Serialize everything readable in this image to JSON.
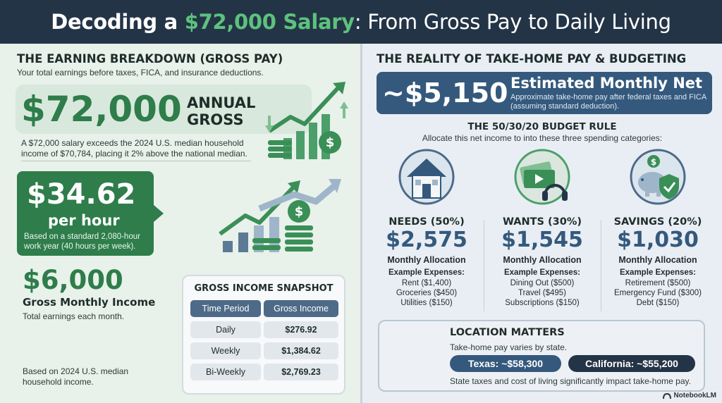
{
  "header": {
    "title_pre": "Decoding a ",
    "title_highlight": "$72,000 Salary",
    "title_mid": ": From Gross Pay to Daily Living"
  },
  "left": {
    "section_title": "THE EARNING BREAKDOWN (GROSS PAY)",
    "section_sub": "Your total earnings before taxes, FICA, and insurance deductions.",
    "annual_value": "$72,000",
    "annual_label_1": "ANNUAL",
    "annual_label_2": "GROSS",
    "annual_note": "A $72,000 salary exceeds the 2024 U.S. median household income of $70,784, placing it 2% above the national median.",
    "hourly_value": "$34.62",
    "hourly_label": "per hour",
    "hourly_note": "Based on a standard 2,080-hour work year (40 hours per week).",
    "monthly_value": "$6,000",
    "monthly_label": "Gross Monthly Income",
    "monthly_note": "Total earnings each month.",
    "footnote": "Based on 2024 U.S. median household income.",
    "snapshot": {
      "title": "GROSS INCOME SNAPSHOT",
      "col_period": "Time Period",
      "col_income": "Gross Income",
      "rows": [
        {
          "period": "Daily",
          "income": "$276.92"
        },
        {
          "period": "Weekly",
          "income": "$1,384.62"
        },
        {
          "period": "Bi-Weekly",
          "income": "$2,769.23"
        }
      ]
    }
  },
  "right": {
    "section_title": "THE REALITY OF TAKE-HOME PAY & BUDGETING",
    "net_value": "~$5,150",
    "net_title": "Estimated Monthly Net",
    "net_note": "Approximate take-home pay after federal taxes and FICA (assuming standard deduction).",
    "rule_title": "THE 50/30/20 BUDGET RULE",
    "rule_sub": "Allocate this net income to into these three spending categories:",
    "categories": [
      {
        "head": "NEEDS (50%)",
        "amount": "$2,575",
        "alloc": "Monthly Allocation",
        "ex_head": "Example Expenses:",
        "ex": [
          "Rent ($1,400)",
          "Groceries ($450)",
          "Utilities ($150)"
        ],
        "icon": "house-icon"
      },
      {
        "head": "WANTS (30%)",
        "amount": "$1,545",
        "alloc": "Monthly Allocation",
        "ex_head": "Example Expenses:",
        "ex": [
          "Dining Out ($500)",
          "Travel ($495)",
          "Subscriptions ($150)"
        ],
        "icon": "headphones-tickets-icon"
      },
      {
        "head": "SAVINGS (20%)",
        "amount": "$1,030",
        "alloc": "Monthly Allocation",
        "ex_head": "Example Expenses:",
        "ex": [
          "Retirement ($500)",
          "Emergency Fund ($300)",
          "Debt ($150)"
        ],
        "icon": "piggy-bank-shield-icon"
      }
    ],
    "location": {
      "title": "LOCATION MATTERS",
      "sub": "Take-home pay varies by state.",
      "texas": "Texas: ~$58,300",
      "california": "California: ~$55,200",
      "note": "State taxes and cost of living significantly impact take-home pay."
    }
  },
  "brand": "NotebookLM",
  "colors": {
    "green": "#2e7d4a",
    "navy": "#243447",
    "blue": "#34597d",
    "highlight": "#5cc27c"
  }
}
